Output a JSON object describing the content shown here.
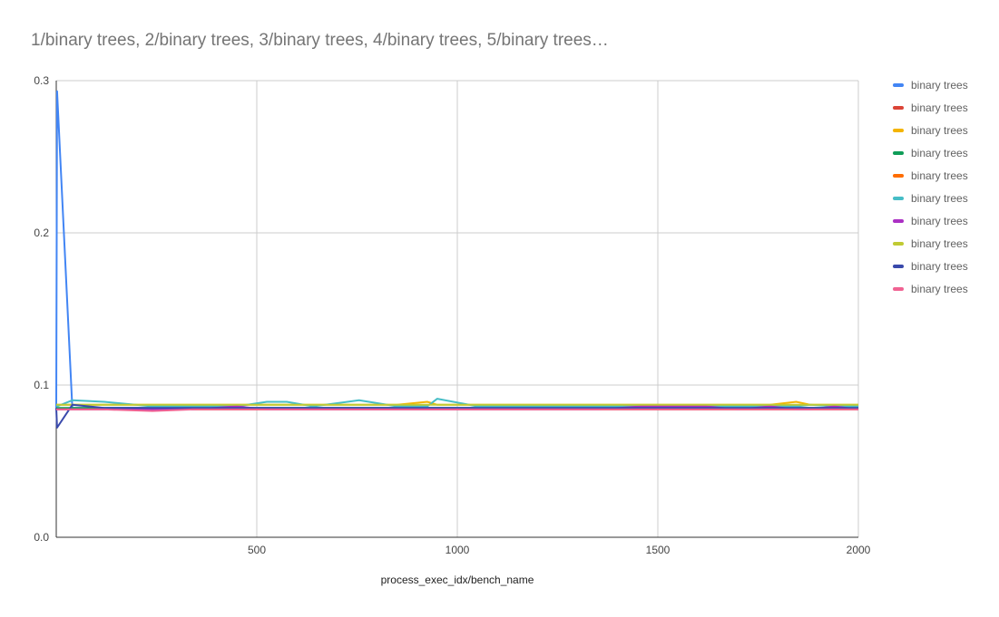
{
  "chart_data": {
    "type": "line",
    "title": "1/binary trees, 2/binary trees, 3/binary trees, 4/binary trees, 5/binary trees…",
    "xlabel": "process_exec_idx/bench_name",
    "ylabel": "",
    "xlim": [
      0,
      2000
    ],
    "ylim": [
      0,
      0.3
    ],
    "x_ticks": [
      "500",
      "1000",
      "1500",
      "2000"
    ],
    "y_ticks": [
      "0.0",
      "0.1",
      "0.2",
      "0.3"
    ],
    "grid": true,
    "legend_position": "right",
    "x": [
      0,
      2,
      40,
      120,
      240,
      340,
      450,
      525,
      575,
      640,
      755,
      850,
      925,
      950,
      1050,
      1150,
      1250,
      1350,
      1460,
      1540,
      1620,
      1700,
      1780,
      1845,
      1880,
      1940,
      2000
    ],
    "series": [
      {
        "name": "binary trees",
        "color": "#4285f4",
        "values": [
          0.085,
          0.293,
          0.085,
          0.085,
          0.085,
          0.085,
          0.085,
          0.085,
          0.085,
          0.085,
          0.085,
          0.085,
          0.085,
          0.085,
          0.085,
          0.085,
          0.085,
          0.085,
          0.085,
          0.085,
          0.085,
          0.085,
          0.085,
          0.085,
          0.085,
          0.085,
          0.085
        ]
      },
      {
        "name": "binary trees",
        "color": "#db4437",
        "values": [
          0.084,
          0.084,
          0.084,
          0.084,
          0.084,
          0.084,
          0.084,
          0.084,
          0.084,
          0.084,
          0.084,
          0.084,
          0.084,
          0.084,
          0.084,
          0.084,
          0.084,
          0.084,
          0.084,
          0.084,
          0.084,
          0.084,
          0.084,
          0.084,
          0.084,
          0.084,
          0.084
        ]
      },
      {
        "name": "binary trees",
        "color": "#f4b400",
        "values": [
          0.087,
          0.087,
          0.087,
          0.087,
          0.087,
          0.087,
          0.087,
          0.087,
          0.087,
          0.087,
          0.087,
          0.087,
          0.089,
          0.087,
          0.087,
          0.087,
          0.087,
          0.087,
          0.087,
          0.087,
          0.087,
          0.087,
          0.087,
          0.089,
          0.087,
          0.087,
          0.087
        ]
      },
      {
        "name": "binary trees",
        "color": "#0f9d58",
        "values": [
          0.085,
          0.085,
          0.085,
          0.085,
          0.085,
          0.085,
          0.085,
          0.085,
          0.085,
          0.085,
          0.085,
          0.085,
          0.085,
          0.085,
          0.085,
          0.085,
          0.085,
          0.085,
          0.085,
          0.085,
          0.085,
          0.085,
          0.085,
          0.085,
          0.085,
          0.085,
          0.085
        ]
      },
      {
        "name": "binary trees",
        "color": "#ff6d00",
        "values": [
          0.084,
          0.084,
          0.084,
          0.084,
          0.084,
          0.084,
          0.084,
          0.084,
          0.084,
          0.084,
          0.084,
          0.084,
          0.084,
          0.084,
          0.084,
          0.084,
          0.084,
          0.084,
          0.084,
          0.084,
          0.084,
          0.084,
          0.084,
          0.084,
          0.084,
          0.084,
          0.084
        ]
      },
      {
        "name": "binary trees",
        "color": "#46bdc6",
        "values": [
          0.086,
          0.086,
          0.09,
          0.089,
          0.086,
          0.086,
          0.086,
          0.089,
          0.089,
          0.086,
          0.09,
          0.086,
          0.086,
          0.091,
          0.086,
          0.086,
          0.086,
          0.086,
          0.086,
          0.086,
          0.086,
          0.086,
          0.086,
          0.086,
          0.087,
          0.086,
          0.086
        ]
      },
      {
        "name": "binary trees",
        "color": "#ab30c4",
        "values": [
          0.084,
          0.084,
          0.084,
          0.084,
          0.084,
          0.084,
          0.086,
          0.084,
          0.084,
          0.084,
          0.084,
          0.084,
          0.084,
          0.084,
          0.084,
          0.084,
          0.084,
          0.084,
          0.086,
          0.086,
          0.086,
          0.084,
          0.086,
          0.084,
          0.084,
          0.086,
          0.084
        ]
      },
      {
        "name": "binary trees",
        "color": "#c0ca33",
        "values": [
          0.087,
          0.087,
          0.087,
          0.087,
          0.087,
          0.087,
          0.087,
          0.087,
          0.087,
          0.087,
          0.087,
          0.087,
          0.087,
          0.087,
          0.087,
          0.087,
          0.087,
          0.087,
          0.087,
          0.087,
          0.087,
          0.087,
          0.087,
          0.087,
          0.087,
          0.087,
          0.087
        ]
      },
      {
        "name": "binary trees",
        "color": "#3949ab",
        "values": [
          0.085,
          0.072,
          0.087,
          0.085,
          0.085,
          0.085,
          0.085,
          0.085,
          0.085,
          0.085,
          0.085,
          0.085,
          0.085,
          0.085,
          0.085,
          0.085,
          0.085,
          0.085,
          0.085,
          0.085,
          0.085,
          0.085,
          0.085,
          0.085,
          0.085,
          0.085,
          0.085
        ]
      },
      {
        "name": "binary trees",
        "color": "#f06292",
        "values": [
          0.084,
          0.084,
          0.084,
          0.084,
          0.083,
          0.084,
          0.084,
          0.084,
          0.084,
          0.084,
          0.084,
          0.084,
          0.084,
          0.084,
          0.084,
          0.084,
          0.084,
          0.084,
          0.084,
          0.084,
          0.084,
          0.084,
          0.084,
          0.084,
          0.084,
          0.084,
          0.084
        ]
      }
    ]
  }
}
